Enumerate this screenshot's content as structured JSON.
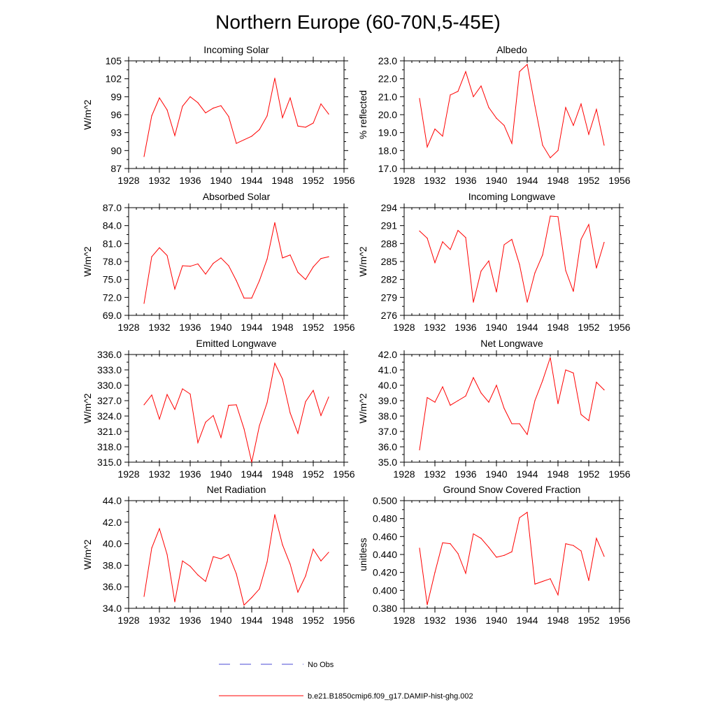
{
  "figure": {
    "title": "Northern Europe (60-70N,5-45E)"
  },
  "colors": {
    "model_line": "#ff0000",
    "obs_line": "#4a4ad6",
    "axis": "#000000"
  },
  "legend": {
    "placement": "bottom-center",
    "obs_label": "No Obs",
    "model_label": "b.e21.B1850cmip6.f09_g17.DAMIP-hist-ghg.002"
  },
  "chart_data": [
    {
      "type": "line",
      "title": "Incoming Solar",
      "ylabel": "W/m^2",
      "xlim": [
        1928,
        1956
      ],
      "ylim": [
        87,
        105
      ],
      "yticks": [
        "87",
        "90",
        "93",
        "96",
        "99",
        "102",
        "105"
      ],
      "xticks": [
        "1928",
        "1932",
        "1936",
        "1940",
        "1944",
        "1948",
        "1952",
        "1956"
      ],
      "x": [
        1930,
        1931,
        1932,
        1933,
        1934,
        1935,
        1936,
        1937,
        1938,
        1939,
        1940,
        1941,
        1942,
        1943,
        1944,
        1945,
        1946,
        1947,
        1948,
        1949,
        1950,
        1951,
        1952,
        1953,
        1954
      ],
      "series": [
        {
          "values": [
            89.0,
            95.8,
            98.8,
            96.8,
            92.5,
            97.4,
            99.0,
            98.0,
            96.3,
            97.1,
            97.5,
            95.7,
            91.2,
            91.8,
            92.4,
            93.5,
            95.8,
            102.1,
            95.5,
            98.8,
            94.1,
            93.9,
            94.6,
            97.8,
            96.1
          ]
        }
      ]
    },
    {
      "type": "line",
      "title": "Albedo",
      "ylabel": "% reflected",
      "xlim": [
        1928,
        1956
      ],
      "ylim": [
        17.0,
        23.0
      ],
      "yticks": [
        "17.0",
        "18.0",
        "19.0",
        "20.0",
        "21.0",
        "22.0",
        "23.0"
      ],
      "xticks": [
        "1928",
        "1932",
        "1936",
        "1940",
        "1944",
        "1948",
        "1952",
        "1956"
      ],
      "x": [
        1930,
        1931,
        1932,
        1933,
        1934,
        1935,
        1936,
        1937,
        1938,
        1939,
        1940,
        1941,
        1942,
        1943,
        1944,
        1945,
        1946,
        1947,
        1948,
        1949,
        1950,
        1951,
        1952,
        1953,
        1954
      ],
      "series": [
        {
          "values": [
            20.9,
            18.2,
            19.2,
            18.8,
            21.1,
            21.3,
            22.4,
            21.0,
            21.6,
            20.4,
            19.8,
            19.4,
            18.4,
            22.4,
            22.8,
            20.5,
            18.3,
            17.6,
            18.0,
            20.4,
            19.4,
            20.6,
            18.9,
            20.3,
            18.3
          ]
        }
      ]
    },
    {
      "type": "line",
      "title": "Absorbed Solar",
      "ylabel": "W/m^2",
      "xlim": [
        1928,
        1956
      ],
      "ylim": [
        69.0,
        87.0
      ],
      "yticks": [
        "69.0",
        "72.0",
        "75.0",
        "78.0",
        "81.0",
        "84.0",
        "87.0"
      ],
      "xticks": [
        "1928",
        "1932",
        "1936",
        "1940",
        "1944",
        "1948",
        "1952",
        "1956"
      ],
      "x": [
        1930,
        1931,
        1932,
        1933,
        1934,
        1935,
        1936,
        1937,
        1938,
        1939,
        1940,
        1941,
        1942,
        1943,
        1944,
        1945,
        1946,
        1947,
        1948,
        1949,
        1950,
        1951,
        1952,
        1953,
        1954
      ],
      "series": [
        {
          "values": [
            71.0,
            78.8,
            80.3,
            79.0,
            73.4,
            77.3,
            77.2,
            77.6,
            75.9,
            77.7,
            78.6,
            77.3,
            74.8,
            71.9,
            71.9,
            74.8,
            78.4,
            84.5,
            78.6,
            79.1,
            76.2,
            75.0,
            77.1,
            78.5,
            78.8
          ]
        }
      ]
    },
    {
      "type": "line",
      "title": "Incoming Longwave",
      "ylabel": "W/m^2",
      "xlim": [
        1928,
        1956
      ],
      "ylim": [
        276,
        294
      ],
      "yticks": [
        "276",
        "279",
        "282",
        "285",
        "288",
        "291",
        "294"
      ],
      "xticks": [
        "1928",
        "1932",
        "1936",
        "1940",
        "1944",
        "1948",
        "1952",
        "1956"
      ],
      "x": [
        1930,
        1931,
        1932,
        1933,
        1934,
        1935,
        1936,
        1937,
        1938,
        1939,
        1940,
        1941,
        1942,
        1943,
        1944,
        1945,
        1946,
        1947,
        1948,
        1949,
        1950,
        1951,
        1952,
        1953,
        1954
      ],
      "series": [
        {
          "values": [
            290.1,
            288.9,
            284.8,
            288.3,
            287.0,
            290.2,
            289.0,
            278.2,
            283.4,
            285.1,
            279.9,
            287.8,
            288.7,
            284.5,
            278.2,
            283.1,
            286.1,
            292.6,
            292.5,
            283.5,
            280.0,
            288.7,
            291.2,
            283.9,
            288.2
          ]
        }
      ]
    },
    {
      "type": "line",
      "title": "Emitted Longwave",
      "ylabel": "W/m^2",
      "xlim": [
        1928,
        1956
      ],
      "ylim": [
        315.0,
        336.0
      ],
      "yticks": [
        "315.0",
        "318.0",
        "321.0",
        "324.0",
        "327.0",
        "330.0",
        "333.0",
        "336.0"
      ],
      "xticks": [
        "1928",
        "1932",
        "1936",
        "1940",
        "1944",
        "1948",
        "1952",
        "1956"
      ],
      "x": [
        1930,
        1931,
        1932,
        1933,
        1934,
        1935,
        1936,
        1937,
        1938,
        1939,
        1940,
        1941,
        1942,
        1943,
        1944,
        1945,
        1946,
        1947,
        1948,
        1949,
        1950,
        1951,
        1952,
        1953,
        1954
      ],
      "series": [
        {
          "values": [
            326.2,
            328.1,
            323.4,
            328.2,
            325.3,
            329.3,
            328.3,
            318.8,
            322.8,
            324.1,
            319.8,
            326.1,
            326.2,
            321.5,
            315.0,
            322.1,
            326.6,
            334.3,
            331.2,
            324.6,
            320.6,
            326.8,
            329.0,
            324.1,
            327.7
          ]
        }
      ]
    },
    {
      "type": "line",
      "title": "Net Longwave",
      "ylabel": "W/m^2",
      "xlim": [
        1928,
        1956
      ],
      "ylim": [
        35.0,
        42.0
      ],
      "yticks": [
        "35.0",
        "36.0",
        "37.0",
        "38.0",
        "39.0",
        "40.0",
        "41.0",
        "42.0"
      ],
      "xticks": [
        "1928",
        "1932",
        "1936",
        "1940",
        "1944",
        "1948",
        "1952",
        "1956"
      ],
      "x": [
        1930,
        1931,
        1932,
        1933,
        1934,
        1935,
        1936,
        1937,
        1938,
        1939,
        1940,
        1941,
        1942,
        1943,
        1944,
        1945,
        1946,
        1947,
        1948,
        1949,
        1950,
        1951,
        1952,
        1953,
        1954
      ],
      "series": [
        {
          "values": [
            35.8,
            39.2,
            38.9,
            39.9,
            38.7,
            39.0,
            39.3,
            40.5,
            39.5,
            38.9,
            40.0,
            38.5,
            37.5,
            37.5,
            36.8,
            39.0,
            40.3,
            41.8,
            38.8,
            41.0,
            40.8,
            38.1,
            37.7,
            40.2,
            39.7
          ]
        }
      ]
    },
    {
      "type": "line",
      "title": "Net Radiation",
      "ylabel": "W/m^2",
      "xlim": [
        1928,
        1956
      ],
      "ylim": [
        34.0,
        44.0
      ],
      "yticks": [
        "34.0",
        "36.0",
        "38.0",
        "40.0",
        "42.0",
        "44.0"
      ],
      "xticks": [
        "1928",
        "1932",
        "1936",
        "1940",
        "1944",
        "1948",
        "1952",
        "1956"
      ],
      "x": [
        1930,
        1931,
        1932,
        1933,
        1934,
        1935,
        1936,
        1937,
        1938,
        1939,
        1940,
        1941,
        1942,
        1943,
        1944,
        1945,
        1946,
        1947,
        1948,
        1949,
        1950,
        1951,
        1952,
        1953,
        1954
      ],
      "series": [
        {
          "values": [
            35.1,
            39.6,
            41.4,
            39.0,
            34.6,
            38.4,
            37.9,
            37.1,
            36.5,
            38.8,
            38.6,
            39.0,
            37.2,
            34.3,
            35.0,
            35.8,
            38.3,
            42.7,
            39.9,
            38.1,
            35.5,
            37.0,
            39.5,
            38.4,
            39.2
          ]
        }
      ]
    },
    {
      "type": "line",
      "title": "Ground Snow Covered Fraction",
      "ylabel": "unitless",
      "xlim": [
        1928,
        1956
      ],
      "ylim": [
        0.38,
        0.5
      ],
      "yticks": [
        "0.380",
        "0.400",
        "0.420",
        "0.440",
        "0.460",
        "0.480",
        "0.500"
      ],
      "xticks": [
        "1928",
        "1932",
        "1936",
        "1940",
        "1944",
        "1948",
        "1952",
        "1956"
      ],
      "x": [
        1930,
        1931,
        1932,
        1933,
        1934,
        1935,
        1936,
        1937,
        1938,
        1939,
        1940,
        1941,
        1942,
        1943,
        1944,
        1945,
        1946,
        1947,
        1948,
        1949,
        1950,
        1951,
        1952,
        1953,
        1954
      ],
      "series": [
        {
          "values": [
            0.447,
            0.384,
            0.42,
            0.453,
            0.452,
            0.441,
            0.419,
            0.463,
            0.458,
            0.448,
            0.437,
            0.439,
            0.443,
            0.481,
            0.487,
            0.407,
            0.41,
            0.413,
            0.395,
            0.452,
            0.45,
            0.444,
            0.411,
            0.458,
            0.438
          ]
        }
      ]
    }
  ]
}
